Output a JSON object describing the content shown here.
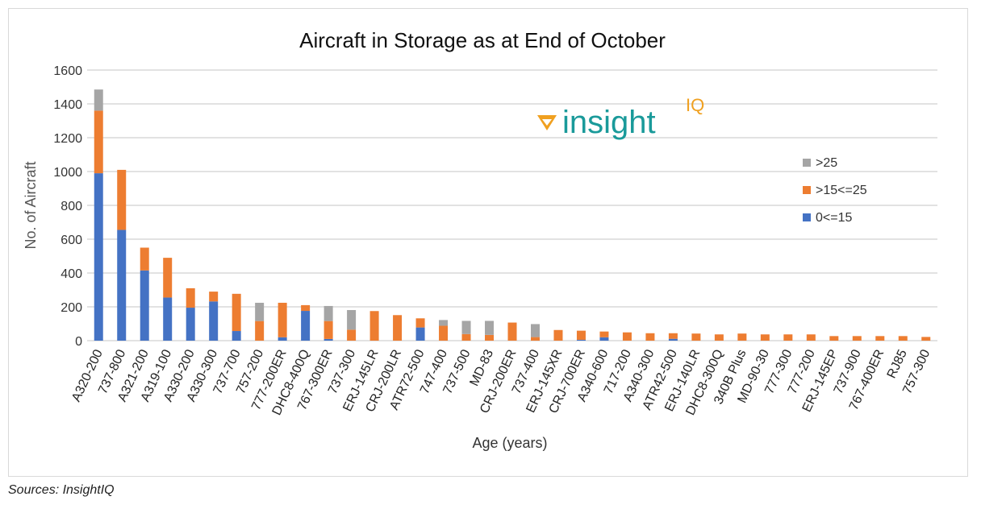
{
  "chart_data": {
    "type": "bar",
    "stacked": true,
    "title": "Aircraft in Storage as at End of October",
    "xlabel": "Age (years)",
    "ylabel": "No. of Aircraft",
    "ylim": [
      0,
      1600
    ],
    "yticks": [
      0,
      200,
      400,
      600,
      800,
      1000,
      1200,
      1400,
      1600
    ],
    "grid": true,
    "legend_placement": "right",
    "categories": [
      "A320-200",
      "737-800",
      "A321-200",
      "A319-100",
      "A330-200",
      "A330-300",
      "737-700",
      "757-200",
      "777-200ER",
      "DHC8-400Q",
      "767-300ER",
      "737-300",
      "ERJ-145LR",
      "CRJ-200LR",
      "ATR72-500",
      "747-400",
      "737-500",
      "MD-83",
      "CRJ-200ER",
      "737-400",
      "ERJ-145XR",
      "CRJ-700ER",
      "A340-600",
      "717-200",
      "A340-300",
      "ATR42-500",
      "ERJ-140LR",
      "DHC8-300Q",
      "340B Plus",
      "MD-90-30",
      "777-300",
      "777-200",
      "ERJ-145EP",
      "737-900",
      "767-400ER",
      "RJ85",
      "757-300"
    ],
    "series": [
      {
        "name": "0<=15",
        "color": "#4472c4",
        "values": [
          990,
          655,
          415,
          255,
          195,
          232,
          57,
          0,
          20,
          176,
          10,
          0,
          0,
          0,
          78,
          0,
          0,
          0,
          0,
          0,
          0,
          5,
          20,
          0,
          0,
          11,
          0,
          0,
          0,
          0,
          0,
          0,
          0,
          0,
          0,
          0,
          0
        ]
      },
      {
        "name": ">15<=25",
        "color": "#ed7d31",
        "values": [
          370,
          355,
          135,
          235,
          115,
          58,
          220,
          116,
          204,
          34,
          106,
          65,
          175,
          151,
          54,
          88,
          39,
          34,
          107,
          21,
          63,
          54,
          34,
          49,
          44,
          33,
          42,
          37,
          42,
          37,
          37,
          37,
          27,
          27,
          27,
          27,
          22
        ]
      },
      {
        "name": ">25",
        "color": "#a5a5a5",
        "values": [
          125,
          0,
          0,
          0,
          0,
          0,
          0,
          108,
          0,
          0,
          89,
          116,
          0,
          0,
          0,
          34,
          78,
          83,
          0,
          77,
          0,
          0,
          0,
          0,
          0,
          0,
          0,
          0,
          0,
          0,
          0,
          0,
          0,
          0,
          0,
          0,
          0
        ]
      }
    ],
    "legend_order": [
      ">25",
      ">15<=25",
      "0<=15"
    ]
  },
  "logo": {
    "text": "insight",
    "superscript": "IQ",
    "text_color": "#1a9a9a",
    "accent_color": "#f0a020"
  },
  "sources": "Sources: InsightIQ"
}
